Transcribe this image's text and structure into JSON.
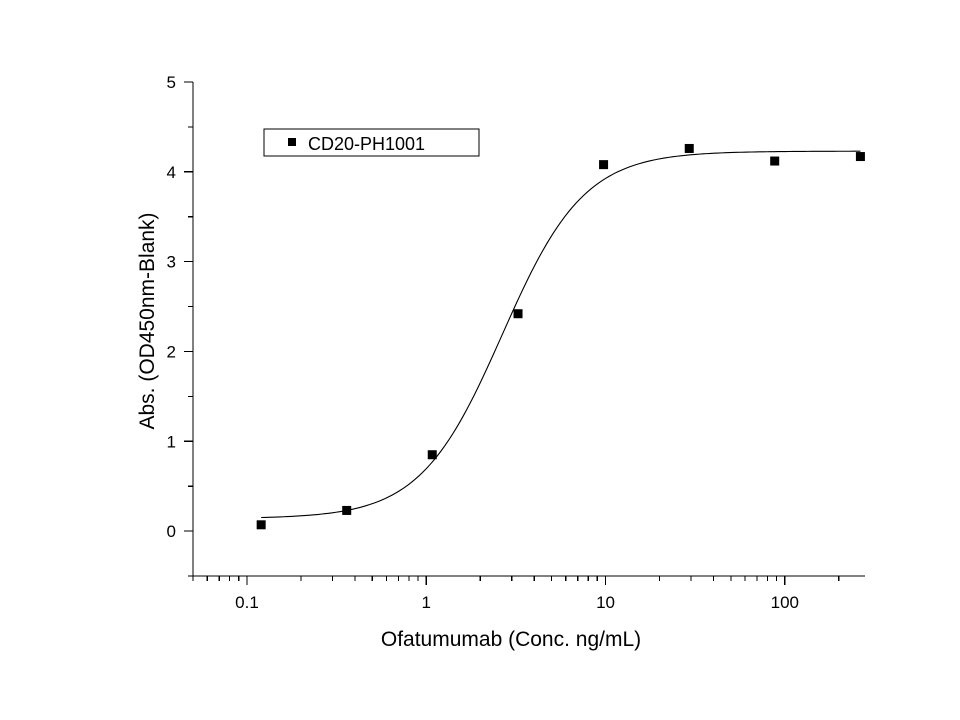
{
  "chart_data": {
    "type": "scatter",
    "title": "",
    "xlabel": "Ofatumumab (Conc. ng/mL)",
    "ylabel": "Abs. (OD450nm-Blank)",
    "x_scale": "log",
    "xlim": [
      0.05,
      280
    ],
    "ylim": [
      -0.5,
      5
    ],
    "x_ticks": [
      {
        "value": 0.1,
        "label": "0.1"
      },
      {
        "value": 1,
        "label": "1"
      },
      {
        "value": 10,
        "label": "10"
      },
      {
        "value": 100,
        "label": "100"
      }
    ],
    "y_ticks": [
      {
        "value": 0,
        "label": "0"
      },
      {
        "value": 1,
        "label": "1"
      },
      {
        "value": 2,
        "label": "2"
      },
      {
        "value": 3,
        "label": "3"
      },
      {
        "value": 4,
        "label": "4"
      },
      {
        "value": 5,
        "label": "5"
      }
    ],
    "grid": false,
    "legend_position": "top-left",
    "series": [
      {
        "name": "CD20-PH1001",
        "marker": "square",
        "color": "#000000",
        "x": [
          0.12,
          0.36,
          1.08,
          3.25,
          9.75,
          29.3,
          87.8,
          264
        ],
        "y": [
          0.07,
          0.23,
          0.85,
          2.42,
          4.08,
          4.26,
          4.12,
          4.17
        ]
      }
    ],
    "fit": {
      "model": "4PL",
      "bottom": 0.14,
      "top": 4.23,
      "ec50": 2.65,
      "hill": 1.9,
      "x_range": [
        0.12,
        264
      ]
    }
  }
}
